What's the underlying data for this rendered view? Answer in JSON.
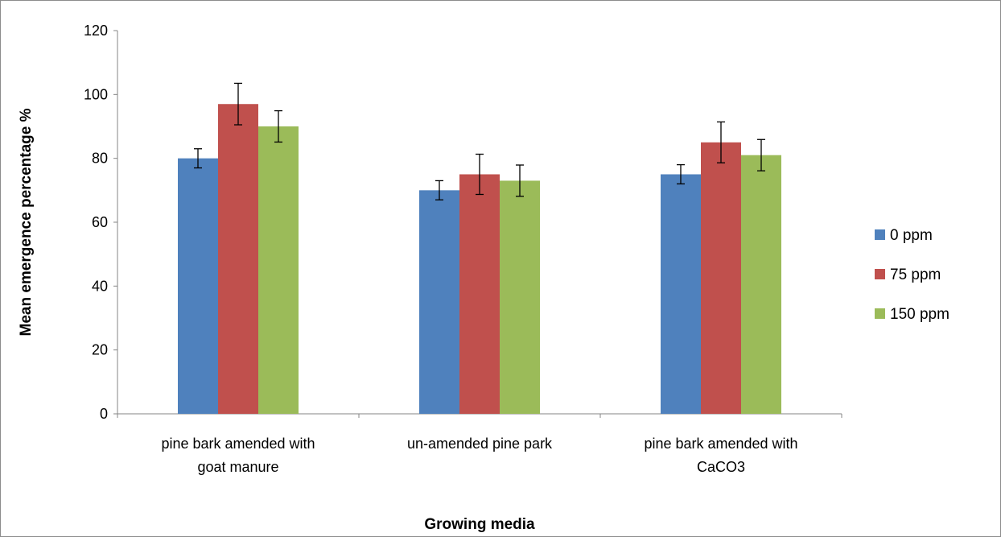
{
  "chart_data": {
    "type": "bar",
    "categories": [
      [
        "pine bark amended with",
        "goat manure"
      ],
      [
        "un-amended pine park"
      ],
      [
        "pine bark amended with",
        "CaCO3"
      ]
    ],
    "series": [
      {
        "name": "0 ppm",
        "color": "#4F81BD",
        "values": [
          80,
          70,
          75
        ],
        "errors": [
          3,
          3,
          3
        ]
      },
      {
        "name": "75 ppm",
        "color": "#C0504D",
        "values": [
          97,
          75,
          85
        ],
        "errors": [
          6.5,
          6.3,
          6.4
        ]
      },
      {
        "name": "150 ppm",
        "color": "#9BBB59",
        "values": [
          90,
          73,
          81
        ],
        "errors": [
          4.9,
          4.9,
          4.9
        ]
      }
    ],
    "xlabel": "Growing media",
    "ylabel": "Mean emergence percentage %",
    "ylim": [
      0,
      120
    ],
    "yticks": [
      0,
      20,
      40,
      60,
      80,
      100,
      120
    ],
    "grid": false,
    "legend_position": "right"
  }
}
